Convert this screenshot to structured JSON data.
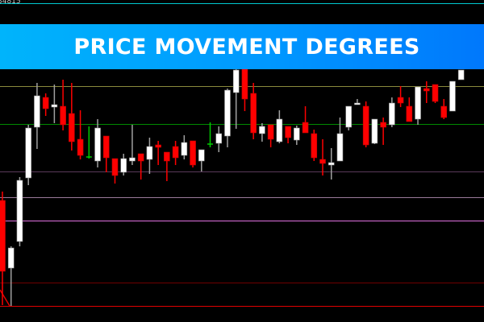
{
  "price_label": "34815",
  "banner": {
    "title": "PRICE MOVEMENT DEGREES"
  },
  "colors": {
    "background": "#000000",
    "bull_body": "#ffffff",
    "bull_wick": "#a0a0a0",
    "bear": "#ff0000",
    "doji": "#00cc00",
    "banner_start": "#00b4fb",
    "banner_end": "#0078fc"
  },
  "chart_data": {
    "type": "candlestick",
    "title": "",
    "xlabel": "",
    "ylabel": "",
    "ylim": [
      0,
      400
    ],
    "grid": false,
    "candles": [
      [
        151,
        162,
        21,
        63
      ],
      [
        67,
        94,
        20,
        92
      ],
      [
        100,
        180,
        94,
        176
      ],
      [
        179,
        245,
        170,
        241
      ],
      [
        242,
        297,
        215,
        281
      ],
      [
        279,
        284,
        256,
        265
      ],
      [
        267,
        295,
        247,
        270
      ],
      [
        268,
        301,
        238,
        245
      ],
      [
        259,
        297,
        213,
        224
      ],
      [
        227,
        263,
        202,
        207
      ],
      [
        205,
        243,
        203,
        205
      ],
      [
        200,
        252,
        192,
        241
      ],
      [
        231,
        231,
        186,
        204
      ],
      [
        203,
        203,
        172,
        182
      ],
      [
        186,
        209,
        182,
        203
      ],
      [
        200,
        245,
        195,
        204
      ],
      [
        209,
        209,
        177,
        200
      ],
      [
        202,
        229,
        184,
        218
      ],
      [
        220,
        225,
        195,
        217
      ],
      [
        211,
        211,
        175,
        200
      ],
      [
        218,
        225,
        195,
        204
      ],
      [
        207,
        232,
        202,
        223
      ],
      [
        225,
        225,
        192,
        195
      ],
      [
        200,
        214,
        187,
        214
      ],
      [
        221,
        248,
        217,
        221
      ],
      [
        222,
        243,
        211,
        234
      ],
      [
        231,
        290,
        217,
        288
      ],
      [
        285,
        320,
        240,
        313
      ],
      [
        320,
        320,
        262,
        277
      ],
      [
        284,
        297,
        227,
        235
      ],
      [
        234,
        247,
        224,
        243
      ],
      [
        245,
        245,
        217,
        227
      ],
      [
        224,
        263,
        222,
        252
      ],
      [
        243,
        243,
        222,
        229
      ],
      [
        226,
        244,
        220,
        241
      ],
      [
        248,
        268,
        235,
        235
      ],
      [
        234,
        239,
        200,
        204
      ],
      [
        202,
        227,
        182,
        197
      ],
      [
        195,
        216,
        177,
        198
      ],
      [
        200,
        254,
        200,
        234
      ],
      [
        242,
        268,
        238,
        268
      ],
      [
        270,
        277,
        270,
        272
      ],
      [
        268,
        274,
        217,
        220
      ],
      [
        222,
        252,
        221,
        252
      ],
      [
        248,
        254,
        220,
        242
      ],
      [
        245,
        279,
        242,
        272
      ],
      [
        279,
        293,
        267,
        272
      ],
      [
        268,
        279,
        249,
        249
      ],
      [
        252,
        292,
        245,
        292
      ],
      [
        290,
        299,
        272,
        287
      ],
      [
        295,
        295,
        272,
        274
      ],
      [
        268,
        277,
        252,
        254
      ],
      [
        262,
        299,
        262,
        299
      ],
      [
        301,
        313,
        301,
        313
      ]
    ],
    "doji_indices": [
      10,
      24
    ],
    "levels": [
      {
        "value": 396,
        "color": "#00c8d0"
      },
      {
        "value": 293,
        "color": "#8a8a3c"
      },
      {
        "value": 246,
        "color": "#008a00"
      },
      {
        "value": 187,
        "color": "#5a3a5a"
      },
      {
        "value": 155,
        "color": "#9a7a9a"
      },
      {
        "value": 126,
        "color": "#e070e0"
      },
      {
        "value": 49,
        "color": "#700000"
      },
      {
        "value": 20,
        "color": "#e00000"
      }
    ]
  }
}
